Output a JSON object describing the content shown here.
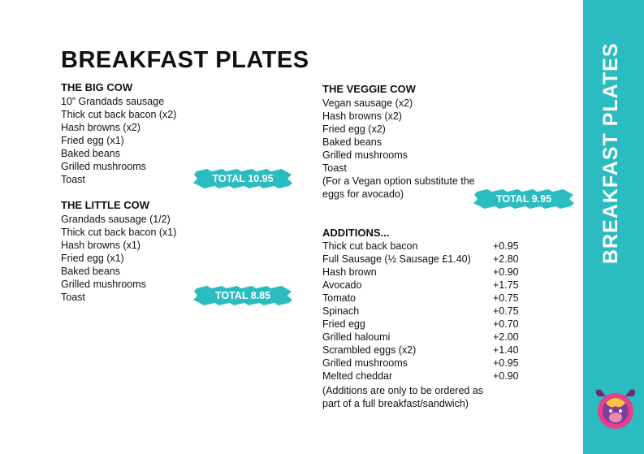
{
  "header": {
    "title": "BREAKFAST PLATES"
  },
  "sidebar": {
    "title": "BREAKFAST PLATES"
  },
  "sections": [
    {
      "title": "THE BIG COW",
      "items": [
        "10” Grandads sausage",
        "Thick cut back bacon (x2)",
        "Hash browns (x2)",
        "Fried egg (x1)",
        "Baked beans",
        "Grilled mushrooms",
        "Toast"
      ],
      "total": "TOTAL 10.95"
    },
    {
      "title": "THE LITTLE COW",
      "items": [
        "Grandads sausage (1/2)",
        "Thick cut back bacon (x1)",
        "Hash browns (x1)",
        "Fried egg (x1)",
        "Baked beans",
        "Grilled mushrooms",
        "Toast"
      ],
      "total": "TOTAL 8.85"
    },
    {
      "title": "THE VEGGIE COW",
      "items": [
        "Vegan sausage (x2)",
        "Hash browns (x2)",
        "Fried egg (x2)",
        "Baked beans",
        "Grilled mushrooms",
        "Toast",
        "(For a Vegan option substitute the eggs for avocado)"
      ],
      "total": "TOTAL 9.95"
    }
  ],
  "additions": {
    "title": "ADDITIONS...",
    "rows": [
      [
        "Thick cut back bacon",
        "+0.95"
      ],
      [
        "Full Sausage (½ Sausage £1.40)",
        "+2.80"
      ],
      [
        "Hash brown",
        "+0.90"
      ],
      [
        "Avocado",
        "+1.75"
      ],
      [
        "Tomato",
        "+0.75"
      ],
      [
        "Spinach",
        "+0.75"
      ],
      [
        "Fried egg",
        "+0.70"
      ],
      [
        "Grilled haloumi",
        "+2.00"
      ],
      [
        "Scrambled eggs (x2)",
        "+1.40"
      ],
      [
        "Grilled mushrooms",
        "+0.95"
      ],
      [
        "Melted cheddar",
        "+0.90"
      ]
    ],
    "note": "(Additions are only to be ordered as part of a full breakfast/sandwich)"
  }
}
